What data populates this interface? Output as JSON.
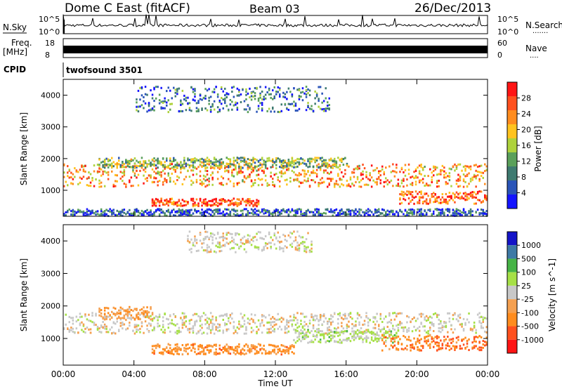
{
  "header": {
    "station": "Dome C East (fitACF)",
    "beam": "Beam 03",
    "date": "26/Dec/2013"
  },
  "side_labels": {
    "nsky": "N.Sky",
    "freq_line1": "Freq.",
    "freq_line2": "[MHz]",
    "cpid": "CPID",
    "nsearch": "N.Search",
    "nsearch_dots": "·······",
    "nave": "Nave",
    "nave_dots": "····"
  },
  "strip_ticks": {
    "nsky_top": "10^5",
    "nsky_bottom": "10^0",
    "nsearch_top": "10^5",
    "nsearch_bottom": "10^0",
    "freq_top": "18",
    "freq_bottom": "8",
    "nave_top": "60",
    "nave_bottom": "0"
  },
  "cpid_value": "twofsound 3501",
  "colors": {
    "power_scale": [
      "#1414ff",
      "#2a54b8",
      "#3e7a70",
      "#5aa05a",
      "#aed23c",
      "#ffc31e",
      "#ff8c1e",
      "#ff501e",
      "#ff1414"
    ],
    "velocity_scale": [
      "#ff1414",
      "#ff501e",
      "#ff8c1e",
      "#f5a050",
      "#c8c8c8",
      "#a6e046",
      "#46b446",
      "#3e7aa6",
      "#1414c8"
    ],
    "axis": "#000000"
  },
  "chart_data": [
    {
      "type": "heatmap",
      "title": "",
      "xlabel": "",
      "ylabel": "Slant Range [km]",
      "colorbar_label": "Power [dB]",
      "colorbar_ticks": [
        "28",
        "24",
        "20",
        "16",
        "12",
        "8",
        "4"
      ],
      "xlim": [
        "00:00",
        "00:00"
      ],
      "ylim": [
        180,
        4500
      ],
      "y_ticks": [
        "1000",
        "2000",
        "3000",
        "4000"
      ],
      "x_ticks": [
        "00:00",
        "04:00",
        "08:00",
        "12:00",
        "16:00",
        "20:00",
        "00:00"
      ],
      "bands": [
        {
          "name": "main-echo-band",
          "t_start": 0,
          "t_end": 24,
          "range_center": 1500,
          "range_width": 450,
          "power": 22
        },
        {
          "name": "upper-scatter",
          "t_start": 2,
          "t_end": 16,
          "range_center": 1900,
          "range_width": 200,
          "power": 14
        },
        {
          "name": "low-range-echo",
          "t_start": 5,
          "t_end": 11,
          "range_center": 650,
          "range_width": 150,
          "power": 26
        },
        {
          "name": "late-low-echo",
          "t_start": 19,
          "t_end": 24,
          "range_center": 800,
          "range_width": 250,
          "power": 26
        },
        {
          "name": "far-range-patches",
          "t_start": 4,
          "t_end": 15,
          "range_center": 3900,
          "range_width": 500,
          "power": 8
        },
        {
          "name": "ground-band",
          "t_start": 0,
          "t_end": 24,
          "range_center": 320,
          "range_width": 150,
          "power": 6
        }
      ]
    },
    {
      "type": "heatmap",
      "title": "",
      "xlabel": "Time UT",
      "ylabel": "Slant Range [km]",
      "colorbar_label": "Velocity [m s^-1]",
      "colorbar_ticks": [
        "1000",
        "500",
        "100",
        "25",
        "-25",
        "-100",
        "-500",
        "-1000"
      ],
      "xlim": [
        "00:00",
        "00:00"
      ],
      "ylim": [
        180,
        4500
      ],
      "y_ticks": [
        "1000",
        "2000",
        "3000",
        "4000"
      ],
      "x_ticks": [
        "00:00",
        "04:00",
        "08:00",
        "12:00",
        "16:00",
        "20:00",
        "00:00"
      ],
      "bands": [
        {
          "name": "ground-scatter-grey",
          "t_start": 0,
          "t_end": 24,
          "range_center": 1500,
          "range_width": 400,
          "velocity": 0
        },
        {
          "name": "early-negative",
          "t_start": 2,
          "t_end": 5,
          "range_center": 1800,
          "range_width": 250,
          "velocity": -300
        },
        {
          "name": "mid-negative",
          "t_start": 5,
          "t_end": 13,
          "range_center": 700,
          "range_width": 200,
          "velocity": -400
        },
        {
          "name": "evening-green",
          "t_start": 13,
          "t_end": 19,
          "range_center": 1100,
          "range_width": 250,
          "velocity": 150
        },
        {
          "name": "late-negative",
          "t_start": 18,
          "t_end": 24,
          "range_center": 900,
          "range_width": 300,
          "velocity": -500
        },
        {
          "name": "far-range-grey",
          "t_start": 7,
          "t_end": 14,
          "range_center": 4000,
          "range_width": 400,
          "velocity": 0
        }
      ]
    }
  ]
}
